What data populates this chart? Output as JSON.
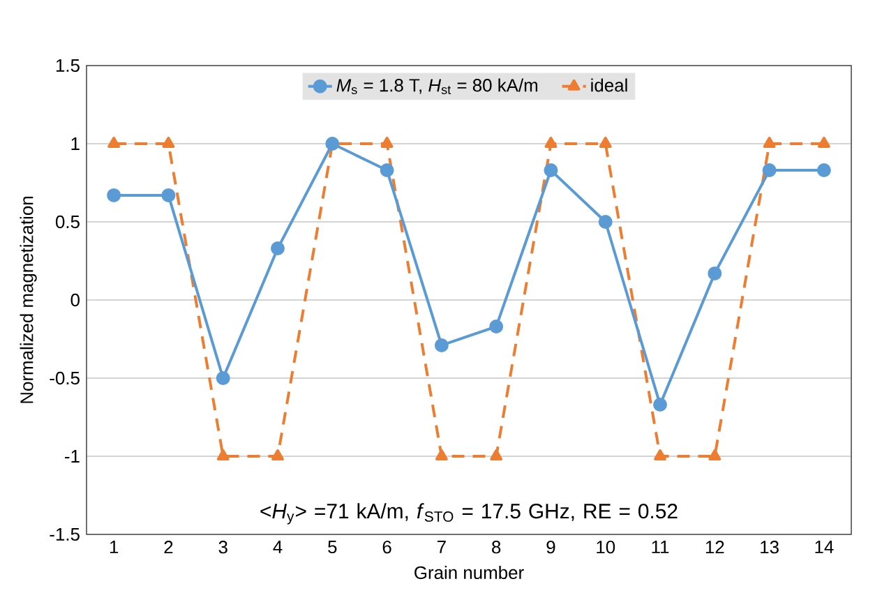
{
  "chart_data": {
    "type": "line",
    "xlabel": "Grain number",
    "ylabel": "Normalized magnetization",
    "categories": [
      "1",
      "2",
      "3",
      "4",
      "5",
      "6",
      "7",
      "8",
      "9",
      "10",
      "11",
      "12",
      "13",
      "14"
    ],
    "series": [
      {
        "name": "*M*$_{s}$ = 1.8 T, *H*$_{st}$ = 80 kA/m",
        "color": "#5b9bd5",
        "marker": "circle",
        "line_style": "solid",
        "values": [
          0.67,
          0.67,
          -0.5,
          0.33,
          1,
          0.83,
          -0.29,
          -0.17,
          0.83,
          0.5,
          -0.67,
          0.17,
          0.83,
          0.83
        ]
      },
      {
        "name": "ideal",
        "color": "#ed7d31",
        "marker": "triangle",
        "line_style": "dashed",
        "values": [
          1,
          1,
          -1,
          -1,
          1,
          1,
          -1,
          -1,
          1,
          1,
          -1,
          -1,
          1,
          1
        ]
      }
    ],
    "ylim": [
      -1.5,
      1.5
    ],
    "yticks": [
      -1.5,
      -1,
      -0.5,
      0,
      0.5,
      1,
      1.5
    ],
    "grid": "y",
    "legend": "top",
    "annotations": [
      "<*H*$_{y}$> =71 kA/m, *f*$_{STO}$ = 17.5 GHz, RE = 0.52"
    ]
  }
}
